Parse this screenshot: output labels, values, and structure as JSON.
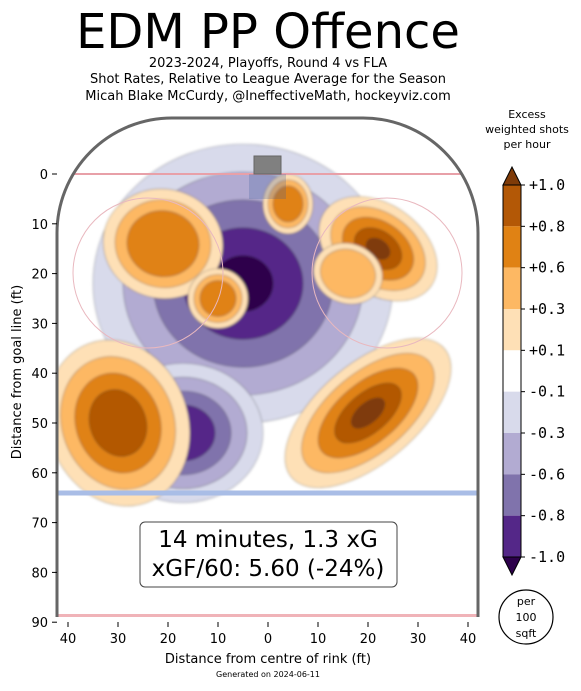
{
  "chart_data": {
    "type": "heatmap",
    "title": "EDM PP Offence",
    "subtitle_lines": [
      "2023-2024, Playoffs, Round 4 vs FLA",
      "Shot Rates, Relative to League Average for the Season",
      "Micah Blake McCurdy, @IneffectiveMath, hockeyviz.com"
    ],
    "xlabel": "Distance from centre of rink (ft)",
    "ylabel": "Distance from goal line (ft)",
    "xlim": [
      42.5,
      -42.5
    ],
    "ylim": [
      -11,
      90
    ],
    "x_ticks": [
      40,
      30,
      20,
      10,
      0,
      10,
      20,
      30,
      40
    ],
    "y_ticks": [
      0,
      10,
      20,
      30,
      40,
      50,
      60,
      70,
      80,
      90
    ],
    "colorbar": {
      "title": [
        "Excess",
        "weighted shots",
        "per hour"
      ],
      "levels": [
        "+1.0",
        "+0.8",
        "+0.6",
        "+0.3",
        "+0.1",
        "-0.1",
        "-0.3",
        "-0.6",
        "-0.8",
        "-1.0"
      ],
      "colors": [
        "#7f3b08",
        "#b35806",
        "#e08214",
        "#fdb863",
        "#fee0b6",
        "#ffffff",
        "#d8daeb",
        "#b2abd2",
        "#8073ac",
        "#542788",
        "#2d004b"
      ],
      "unit_badge": [
        "per",
        "100",
        "sqft"
      ]
    },
    "annotation": [
      "14 minutes, 1.3 xG",
      "xGF/60: 5.60 (-24%)"
    ],
    "footer": "Generated on 2024-06-11",
    "regions": [
      {
        "sign": "negative",
        "peak": -1.0,
        "cx": 5,
        "cy": 22
      },
      {
        "sign": "negative",
        "peak": -0.8,
        "cx": 17,
        "cy": 52
      },
      {
        "sign": "positive",
        "peak": 1.0,
        "cx": -22,
        "cy": 15
      },
      {
        "sign": "positive",
        "peak": 1.0,
        "cx": -20,
        "cy": 48
      },
      {
        "sign": "positive",
        "peak": 0.8,
        "cx": 30,
        "cy": 50
      },
      {
        "sign": "positive",
        "peak": 0.6,
        "cx": 21,
        "cy": 14
      },
      {
        "sign": "positive",
        "peak": 0.6,
        "cx": 10,
        "cy": 25
      },
      {
        "sign": "positive",
        "peak": 0.6,
        "cx": -4,
        "cy": 6
      },
      {
        "sign": "positive",
        "peak": 0.3,
        "cx": -16,
        "cy": 20
      }
    ]
  }
}
